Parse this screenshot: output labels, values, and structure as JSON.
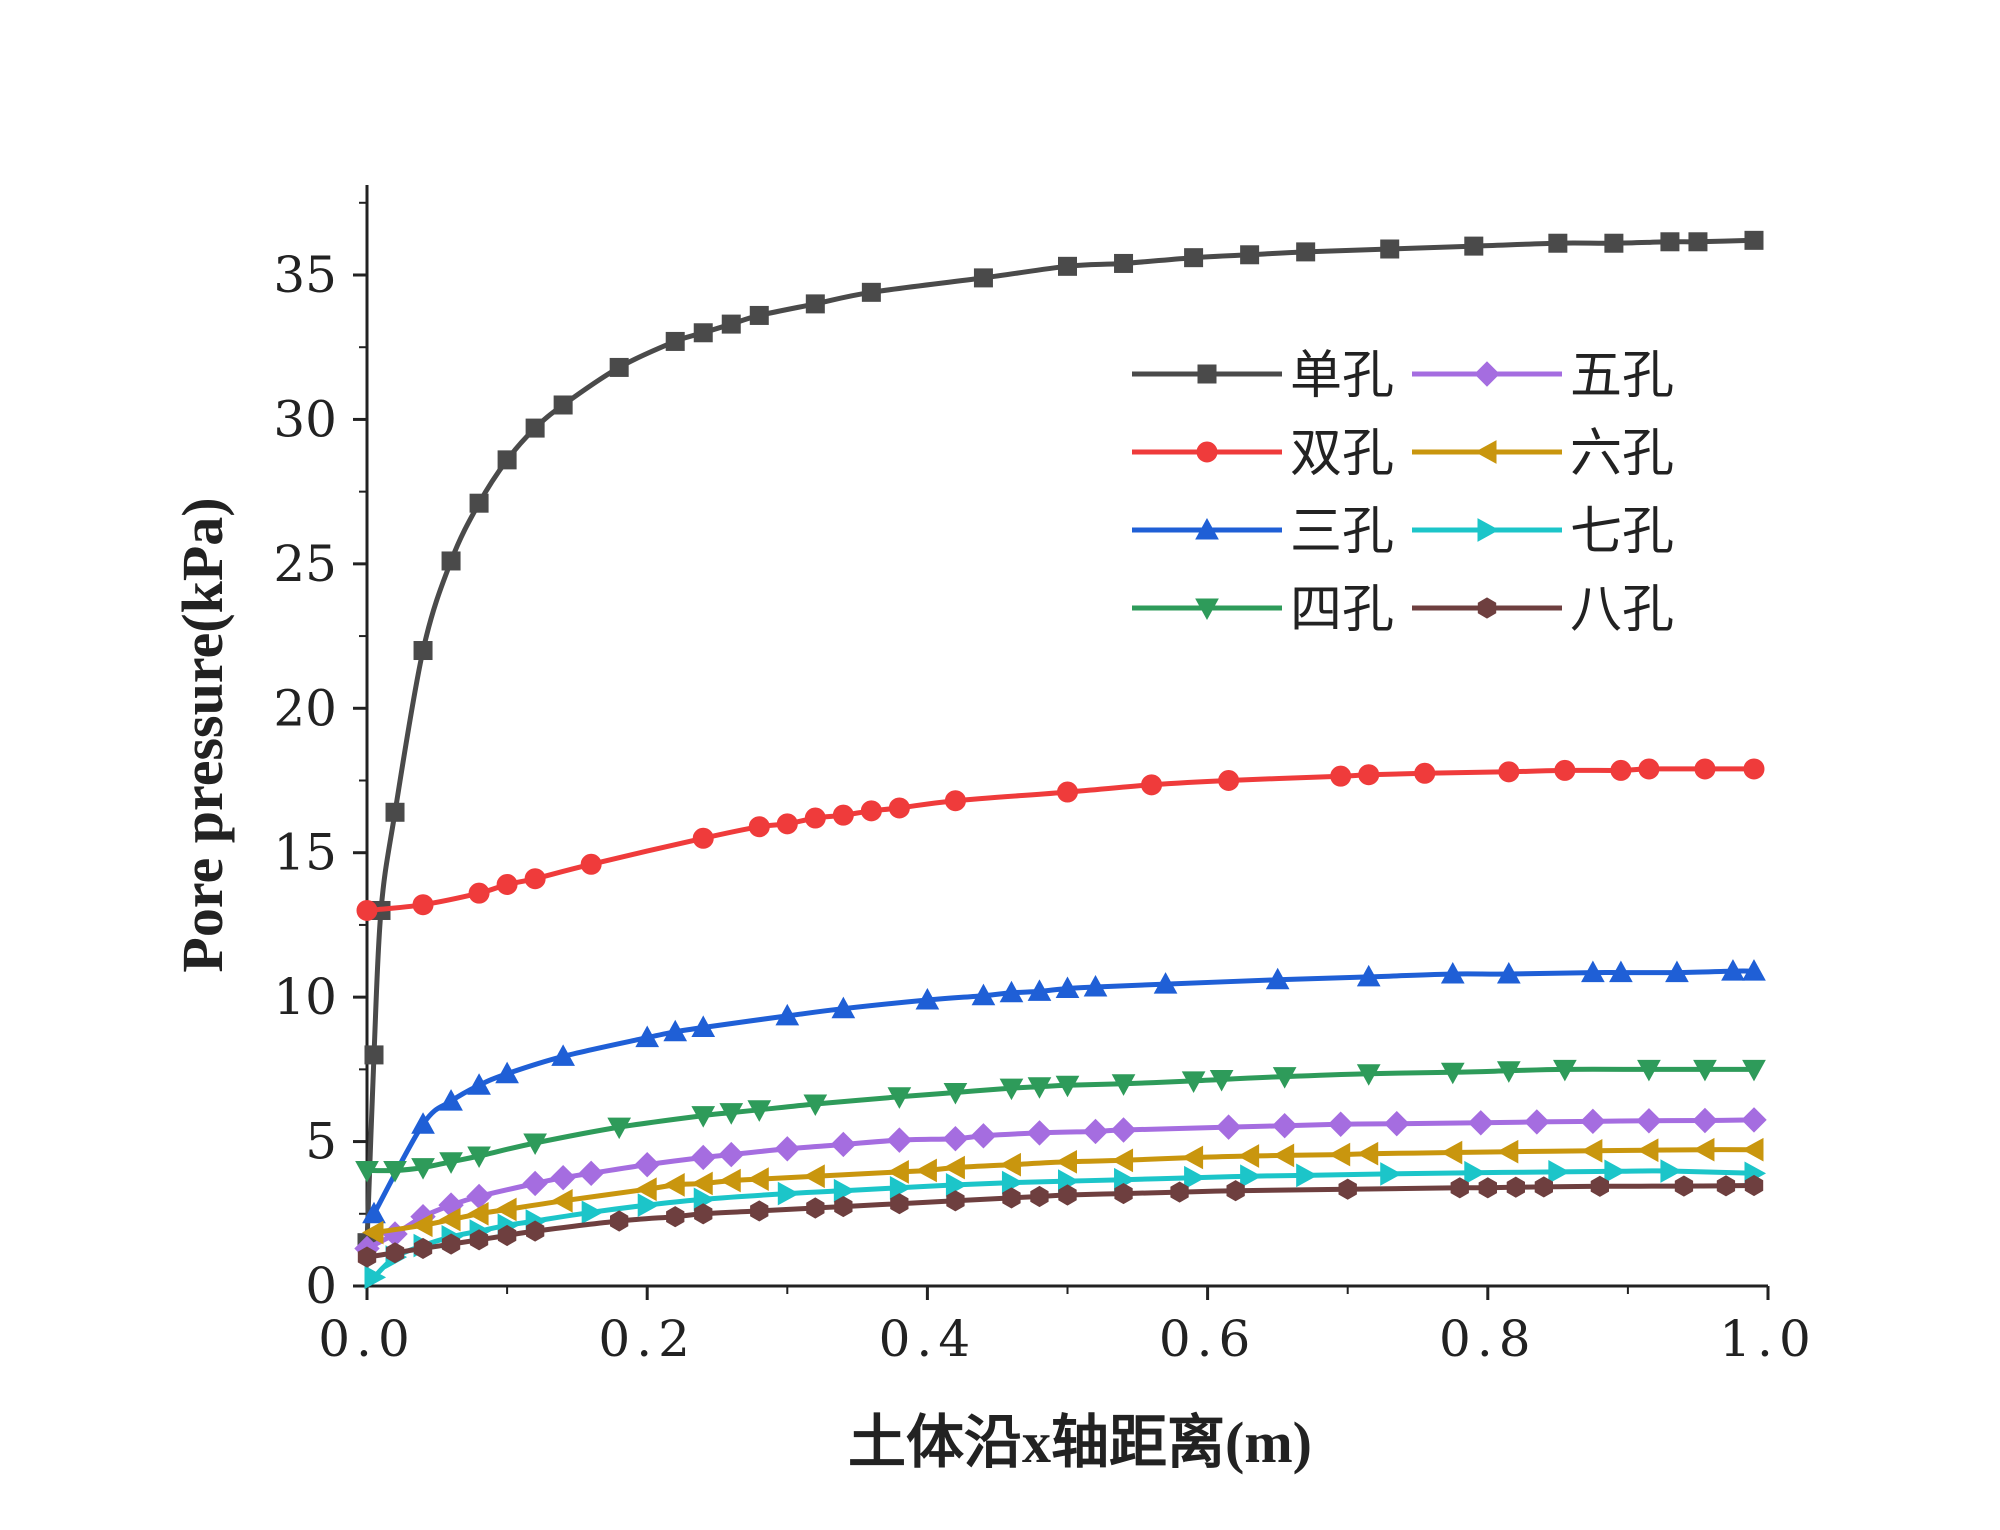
{
  "chart_data": {
    "type": "line",
    "title": "",
    "xlabel": "土体沿x轴距离(m)",
    "ylabel": "Pore pressure(kPa)",
    "xlim": [
      0,
      1.0
    ],
    "ylim": [
      0,
      38
    ],
    "xticks": [
      0.0,
      0.2,
      0.4,
      0.6,
      0.8,
      1.0
    ],
    "xtick_labels": [
      "0.0",
      "0.2",
      "0.4",
      "0.6",
      "0.8",
      "1.0"
    ],
    "yticks": [
      0,
      5,
      10,
      15,
      20,
      25,
      30,
      35
    ],
    "ytick_labels": [
      "0",
      "5",
      "10",
      "15",
      "20",
      "25",
      "30",
      "35"
    ],
    "grid": false,
    "legend_position": "upper-right, two columns",
    "series": [
      {
        "name": "单孔",
        "color": "#4a4a4a",
        "marker": "square",
        "x": [
          0,
          0.005,
          0.01,
          0.02,
          0.04,
          0.06,
          0.08,
          0.1,
          0.12,
          0.14,
          0.18,
          0.22,
          0.24,
          0.26,
          0.28,
          0.32,
          0.36,
          0.44,
          0.5,
          0.54,
          0.59,
          0.63,
          0.67,
          0.73,
          0.79,
          0.85,
          0.89,
          0.93,
          0.95,
          0.99
        ],
        "y": [
          1.5,
          8.0,
          13.0,
          16.4,
          22.0,
          25.1,
          27.1,
          28.6,
          29.7,
          30.5,
          31.8,
          32.7,
          33.0,
          33.3,
          33.6,
          34.0,
          34.4,
          34.9,
          35.3,
          35.4,
          35.6,
          35.7,
          35.8,
          35.9,
          36.0,
          36.1,
          36.1,
          36.15,
          36.15,
          36.2
        ]
      },
      {
        "name": "双孔",
        "color": "#ef3b3b",
        "marker": "circle",
        "x": [
          0,
          0.04,
          0.08,
          0.1,
          0.12,
          0.16,
          0.24,
          0.28,
          0.3,
          0.32,
          0.34,
          0.36,
          0.38,
          0.42,
          0.5,
          0.56,
          0.615,
          0.695,
          0.715,
          0.755,
          0.815,
          0.855,
          0.895,
          0.915,
          0.955,
          0.99
        ],
        "y": [
          13.0,
          13.2,
          13.6,
          13.9,
          14.1,
          14.6,
          15.5,
          15.9,
          16.0,
          16.2,
          16.3,
          16.45,
          16.55,
          16.8,
          17.1,
          17.35,
          17.5,
          17.65,
          17.7,
          17.75,
          17.8,
          17.85,
          17.85,
          17.9,
          17.9,
          17.9
        ]
      },
      {
        "name": "三孔",
        "color": "#1f5fd6",
        "marker": "triangle-up",
        "x": [
          0.005,
          0.04,
          0.06,
          0.08,
          0.1,
          0.14,
          0.2,
          0.22,
          0.24,
          0.3,
          0.34,
          0.4,
          0.44,
          0.46,
          0.48,
          0.5,
          0.52,
          0.57,
          0.65,
          0.715,
          0.775,
          0.815,
          0.875,
          0.895,
          0.935,
          0.975,
          0.99
        ],
        "y": [
          2.5,
          5.6,
          6.4,
          6.95,
          7.35,
          7.95,
          8.6,
          8.8,
          8.95,
          9.35,
          9.6,
          9.9,
          10.05,
          10.15,
          10.2,
          10.3,
          10.35,
          10.45,
          10.6,
          10.7,
          10.8,
          10.8,
          10.85,
          10.85,
          10.85,
          10.9,
          10.9
        ]
      },
      {
        "name": "四孔",
        "color": "#2e9b5a",
        "marker": "triangle-down",
        "x": [
          0,
          0.02,
          0.04,
          0.06,
          0.08,
          0.12,
          0.18,
          0.24,
          0.26,
          0.28,
          0.32,
          0.38,
          0.42,
          0.46,
          0.48,
          0.5,
          0.54,
          0.59,
          0.61,
          0.655,
          0.715,
          0.775,
          0.815,
          0.855,
          0.915,
          0.955,
          0.99
        ],
        "y": [
          4.0,
          4.0,
          4.1,
          4.3,
          4.5,
          4.95,
          5.5,
          5.9,
          6.0,
          6.1,
          6.3,
          6.55,
          6.7,
          6.85,
          6.9,
          6.95,
          7.0,
          7.1,
          7.15,
          7.25,
          7.35,
          7.4,
          7.45,
          7.5,
          7.5,
          7.5,
          7.5
        ]
      },
      {
        "name": "五孔",
        "color": "#a56de0",
        "marker": "diamond",
        "x": [
          0,
          0.02,
          0.04,
          0.06,
          0.08,
          0.12,
          0.14,
          0.16,
          0.2,
          0.24,
          0.26,
          0.3,
          0.34,
          0.38,
          0.42,
          0.44,
          0.48,
          0.52,
          0.54,
          0.615,
          0.655,
          0.695,
          0.735,
          0.795,
          0.835,
          0.875,
          0.915,
          0.955,
          0.99
        ],
        "y": [
          1.3,
          1.8,
          2.4,
          2.8,
          3.1,
          3.55,
          3.75,
          3.9,
          4.2,
          4.45,
          4.55,
          4.75,
          4.9,
          5.05,
          5.1,
          5.2,
          5.3,
          5.35,
          5.4,
          5.5,
          5.55,
          5.6,
          5.62,
          5.65,
          5.68,
          5.7,
          5.72,
          5.73,
          5.75
        ]
      },
      {
        "name": "六孔",
        "color": "#c9960e",
        "marker": "triangle-left",
        "x": [
          0.005,
          0.04,
          0.06,
          0.08,
          0.1,
          0.14,
          0.2,
          0.22,
          0.24,
          0.26,
          0.28,
          0.32,
          0.38,
          0.4,
          0.42,
          0.46,
          0.5,
          0.54,
          0.59,
          0.63,
          0.655,
          0.695,
          0.715,
          0.775,
          0.815,
          0.875,
          0.915,
          0.955,
          0.99
        ],
        "y": [
          1.85,
          2.1,
          2.3,
          2.5,
          2.65,
          2.95,
          3.35,
          3.5,
          3.55,
          3.65,
          3.7,
          3.8,
          3.95,
          4.0,
          4.1,
          4.2,
          4.3,
          4.35,
          4.45,
          4.5,
          4.52,
          4.55,
          4.58,
          4.62,
          4.65,
          4.68,
          4.7,
          4.72,
          4.72
        ]
      },
      {
        "name": "七孔",
        "color": "#1cc5c9",
        "marker": "triangle-right",
        "x": [
          0.005,
          0.02,
          0.04,
          0.06,
          0.08,
          0.1,
          0.12,
          0.16,
          0.2,
          0.24,
          0.3,
          0.34,
          0.38,
          0.42,
          0.46,
          0.5,
          0.54,
          0.59,
          0.63,
          0.67,
          0.73,
          0.79,
          0.85,
          0.89,
          0.93,
          0.99
        ],
        "y": [
          0.3,
          1.0,
          1.4,
          1.7,
          1.9,
          2.1,
          2.25,
          2.55,
          2.8,
          3.0,
          3.2,
          3.3,
          3.4,
          3.5,
          3.58,
          3.63,
          3.68,
          3.75,
          3.8,
          3.83,
          3.88,
          3.92,
          3.95,
          3.97,
          3.98,
          3.9
        ]
      },
      {
        "name": "八孔",
        "color": "#6e3f3f",
        "marker": "hexagon",
        "x": [
          0,
          0.02,
          0.04,
          0.06,
          0.08,
          0.1,
          0.12,
          0.18,
          0.22,
          0.24,
          0.28,
          0.32,
          0.34,
          0.38,
          0.42,
          0.46,
          0.48,
          0.5,
          0.54,
          0.58,
          0.62,
          0.7,
          0.78,
          0.8,
          0.82,
          0.84,
          0.88,
          0.94,
          0.97,
          0.99
        ],
        "y": [
          1.0,
          1.15,
          1.3,
          1.45,
          1.6,
          1.75,
          1.9,
          2.25,
          2.4,
          2.5,
          2.6,
          2.7,
          2.75,
          2.85,
          2.95,
          3.05,
          3.1,
          3.15,
          3.2,
          3.25,
          3.3,
          3.35,
          3.4,
          3.4,
          3.42,
          3.43,
          3.45,
          3.46,
          3.47,
          3.48
        ]
      }
    ]
  }
}
